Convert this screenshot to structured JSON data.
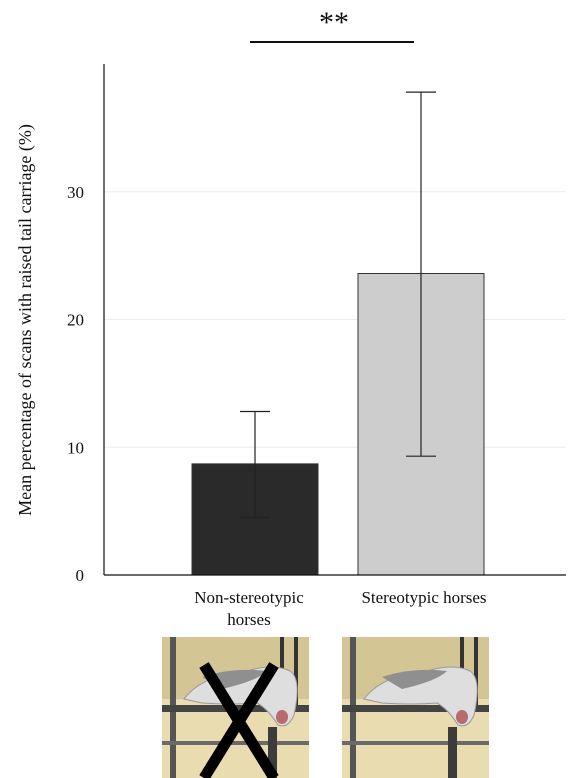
{
  "chart_data": {
    "type": "bar",
    "categories": [
      "Non-stereotypic horses",
      "Stereotypic horses"
    ],
    "category_label_lines": [
      [
        "Non-stereotypic",
        "horses"
      ],
      [
        "Stereotypic horses"
      ]
    ],
    "values": [
      8.7,
      23.6
    ],
    "error_bars": [
      {
        "low": 4.5,
        "high": 12.8
      },
      {
        "low": 9.3,
        "high": 37.8
      }
    ],
    "bar_colors": [
      "#2a2a2a",
      "#cdcdcd"
    ],
    "ylabel": "Mean percentage of scans with raised tail carriage  (%)",
    "ylim": [
      0,
      40
    ],
    "yticks": [
      0,
      10,
      20,
      30
    ],
    "significance": "**",
    "grid": true
  },
  "images": [
    {
      "name": "horse-head-crossed-out",
      "crossed": true
    },
    {
      "name": "horse-head-tail-raised",
      "crossed": false
    }
  ]
}
